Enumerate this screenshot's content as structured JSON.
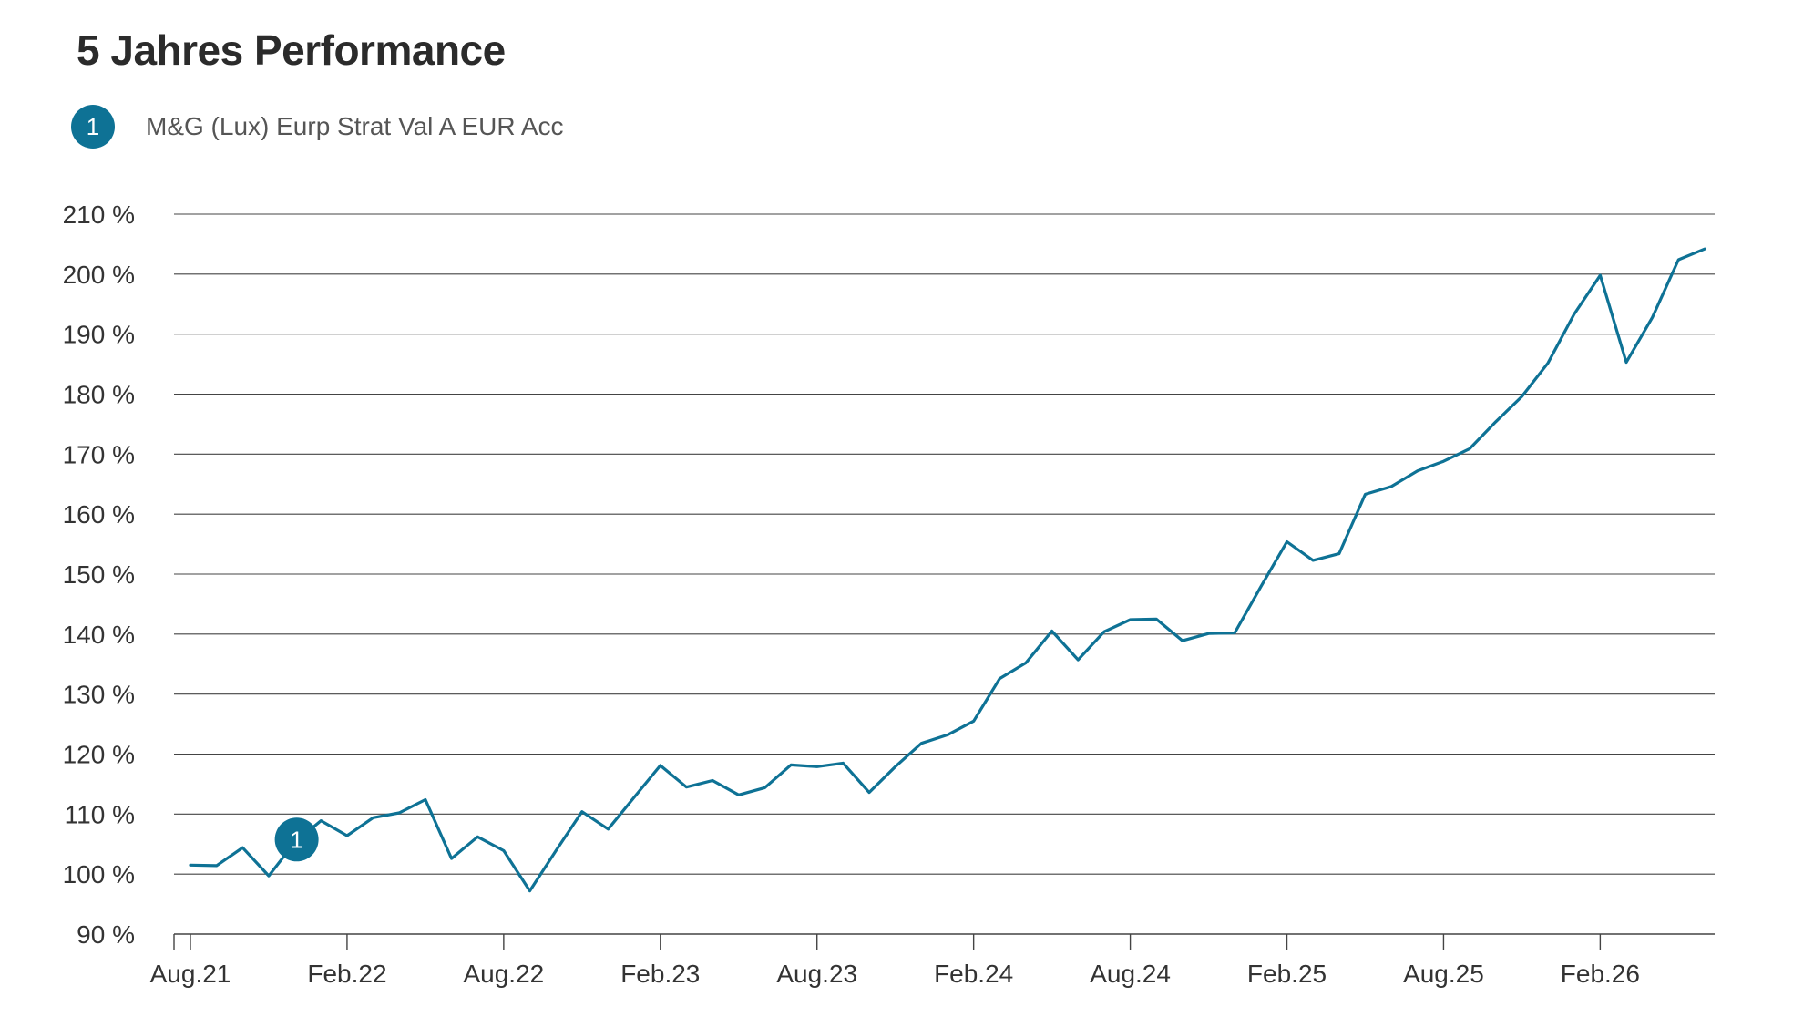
{
  "title": "5 Jahres Performance",
  "legend": {
    "marker": "1",
    "label": "M&G (Lux) Eurp Strat Val A EUR Acc"
  },
  "colors": {
    "series": "#0e7295",
    "grid": "#444444",
    "text": "#333333"
  },
  "chart_data": {
    "type": "line",
    "title": "5 Jahres Performance",
    "xlabel": "",
    "ylabel": "",
    "grid": true,
    "legend_position": "top-left",
    "ylim": [
      90,
      210
    ],
    "y_ticks": [
      210,
      200,
      190,
      180,
      170,
      160,
      150,
      140,
      130,
      120,
      110,
      100,
      90
    ],
    "y_tick_labels": [
      "210 %",
      "200 %",
      "190 %",
      "180 %",
      "170 %",
      "160 %",
      "150 %",
      "140 %",
      "130 %",
      "120 %",
      "110 %",
      "100 %",
      "90 %"
    ],
    "x_tick_labels": [
      "Aug.21",
      "Feb.22",
      "Aug.22",
      "Feb.23",
      "Aug.23",
      "Feb.24",
      "Aug.24",
      "Feb.25",
      "Aug.25",
      "Feb.26"
    ],
    "x_tick_index": [
      0,
      6,
      12,
      18,
      24,
      30,
      36,
      42,
      48,
      54
    ],
    "series_marker": {
      "label": "1",
      "index": 4
    },
    "series": [
      {
        "name": "M&G (Lux) Eurp Strat Val A EUR Acc",
        "values": [
          101.5,
          101.4,
          104.4,
          99.7,
          105.3,
          108.9,
          106.4,
          109.4,
          110.2,
          112.4,
          102.6,
          106.2,
          103.9,
          97.2,
          103.9,
          110.4,
          107.5,
          112.8,
          118.1,
          114.5,
          115.6,
          113.2,
          114.4,
          118.2,
          117.9,
          118.5,
          113.6,
          117.9,
          121.8,
          123.2,
          125.5,
          132.6,
          135.2,
          140.5,
          135.7,
          140.4,
          142.4,
          142.5,
          138.9,
          140.1,
          140.2,
          147.9,
          155.4,
          152.3,
          153.4,
          163.3,
          164.6,
          167.2,
          168.8,
          170.9,
          175.4,
          179.6,
          185.2,
          193.3,
          199.8,
          185.3,
          192.8,
          202.4,
          204.2
        ]
      }
    ]
  }
}
